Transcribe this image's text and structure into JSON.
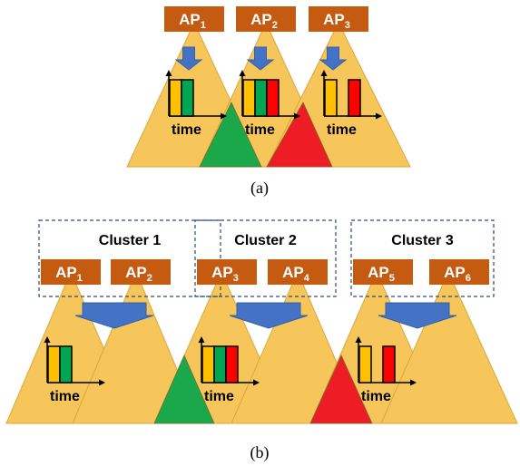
{
  "colors": {
    "coverage": "#F7C65A",
    "coverage_stroke": "#D9A73A",
    "ap_box": "#C55A11",
    "arrow": "#4472C4",
    "slot_yellow": "#FFC000",
    "slot_green": "#00A651",
    "slot_red": "#FF0000",
    "overlap_green": "#1AA84B",
    "overlap_red": "#EE1C25",
    "cluster_border": "#2F4A73"
  },
  "time_label": "time",
  "part_a": {
    "caption": "(a)",
    "aps": [
      {
        "name": "AP",
        "sub": "1"
      },
      {
        "name": "AP",
        "sub": "2"
      },
      {
        "name": "AP",
        "sub": "3"
      }
    ],
    "schedules": [
      [
        "yellow",
        "green"
      ],
      [
        "yellow",
        "green",
        "red"
      ],
      [
        "yellow",
        "gap",
        "red"
      ]
    ]
  },
  "part_b": {
    "caption": "(b)",
    "clusters": [
      {
        "label": "Cluster 1",
        "aps": [
          {
            "name": "AP",
            "sub": "1"
          },
          {
            "name": "AP",
            "sub": "2"
          }
        ],
        "schedule": [
          "yellow",
          "green"
        ]
      },
      {
        "label": "Cluster 2",
        "aps": [
          {
            "name": "AP",
            "sub": "3"
          },
          {
            "name": "AP",
            "sub": "4"
          }
        ],
        "schedule": [
          "yellow",
          "green",
          "red"
        ]
      },
      {
        "label": "Cluster 3",
        "aps": [
          {
            "name": "AP",
            "sub": "5"
          },
          {
            "name": "AP",
            "sub": "6"
          }
        ],
        "schedule": [
          "yellow",
          "gap",
          "red"
        ]
      }
    ]
  }
}
